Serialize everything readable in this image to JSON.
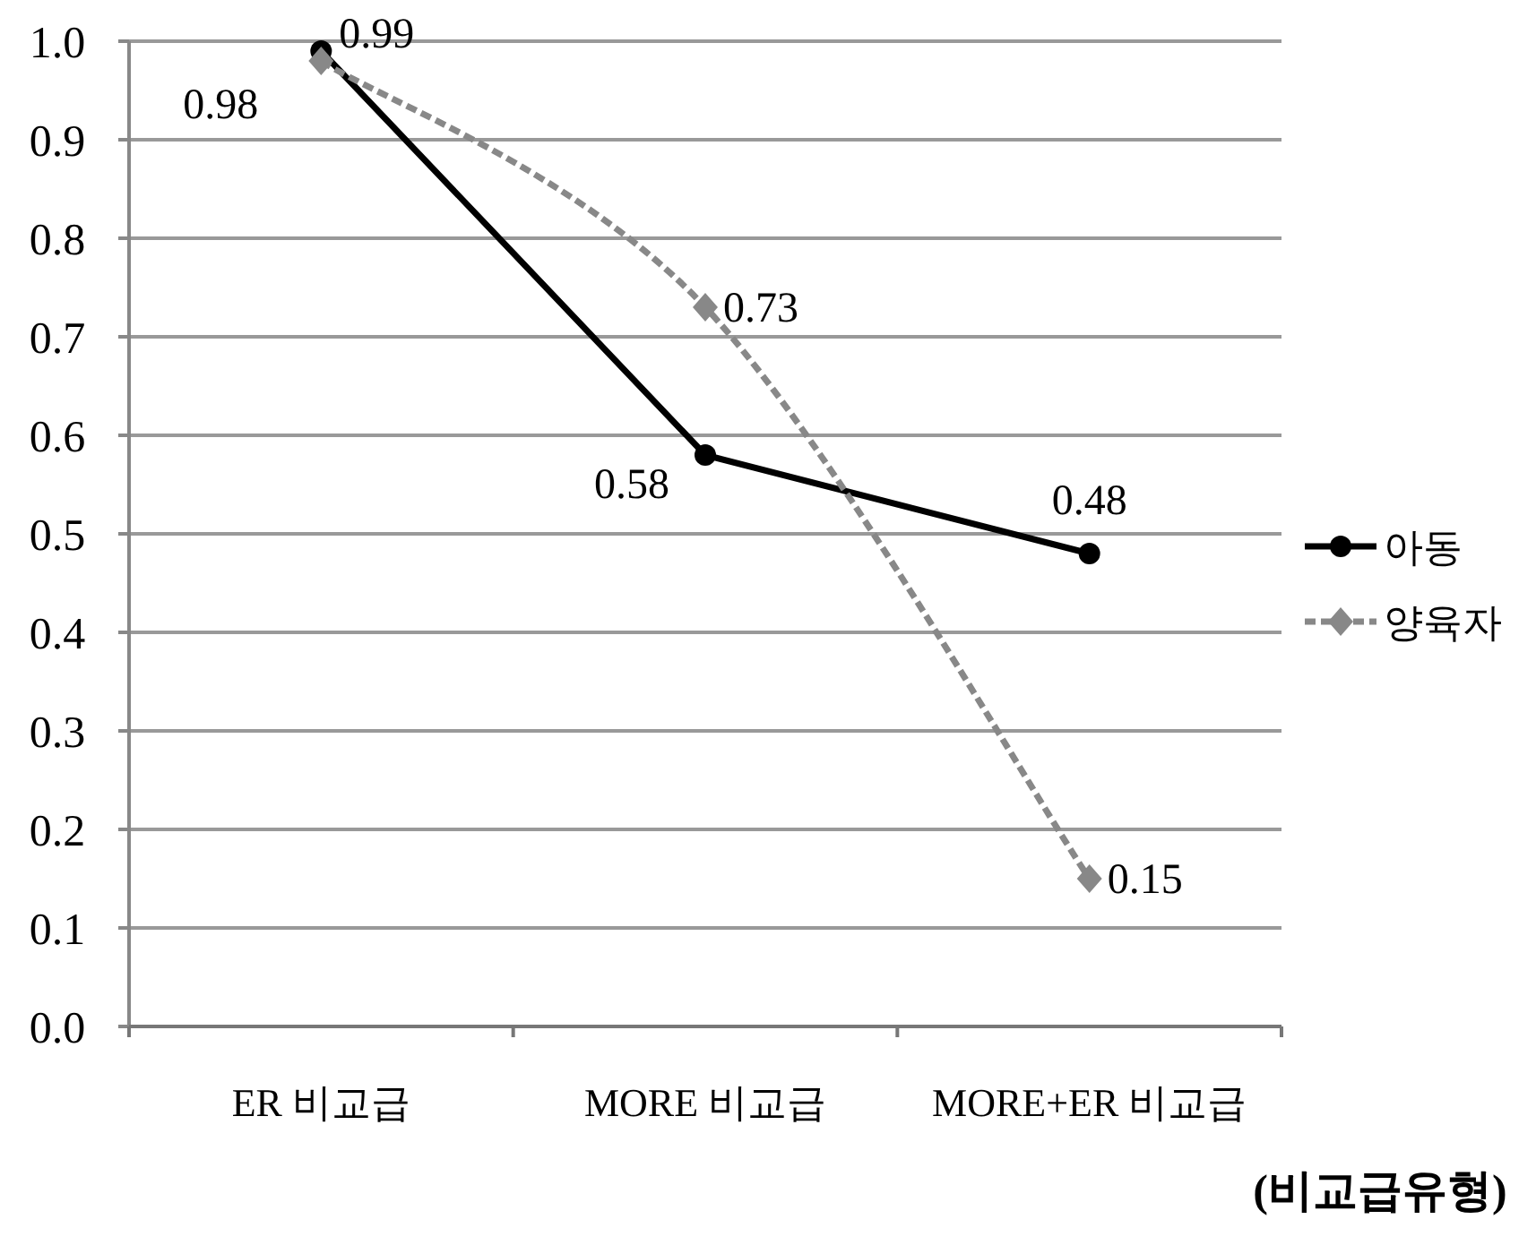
{
  "chart_data": {
    "type": "line",
    "categories": [
      "ER 비교급",
      "MORE 비교급",
      "MORE+ER 비교급"
    ],
    "series": [
      {
        "name": "아동",
        "color": "#000000",
        "values": [
          0.99,
          0.58,
          0.48
        ],
        "marker": "circle",
        "line_style": "solid"
      },
      {
        "name": "양육자",
        "color": "#888888",
        "values": [
          0.98,
          0.73,
          0.15
        ],
        "marker": "diamond",
        "line_style": "dashed"
      }
    ],
    "ylim": [
      0,
      1
    ],
    "yticks": [
      "0.0",
      "0.1",
      "0.2",
      "0.3",
      "0.4",
      "0.5",
      "0.6",
      "0.7",
      "0.8",
      "0.9",
      "1.0"
    ],
    "xlabel": "(비교급유형)",
    "grid": "y",
    "legend": "right",
    "data_labels": true
  }
}
